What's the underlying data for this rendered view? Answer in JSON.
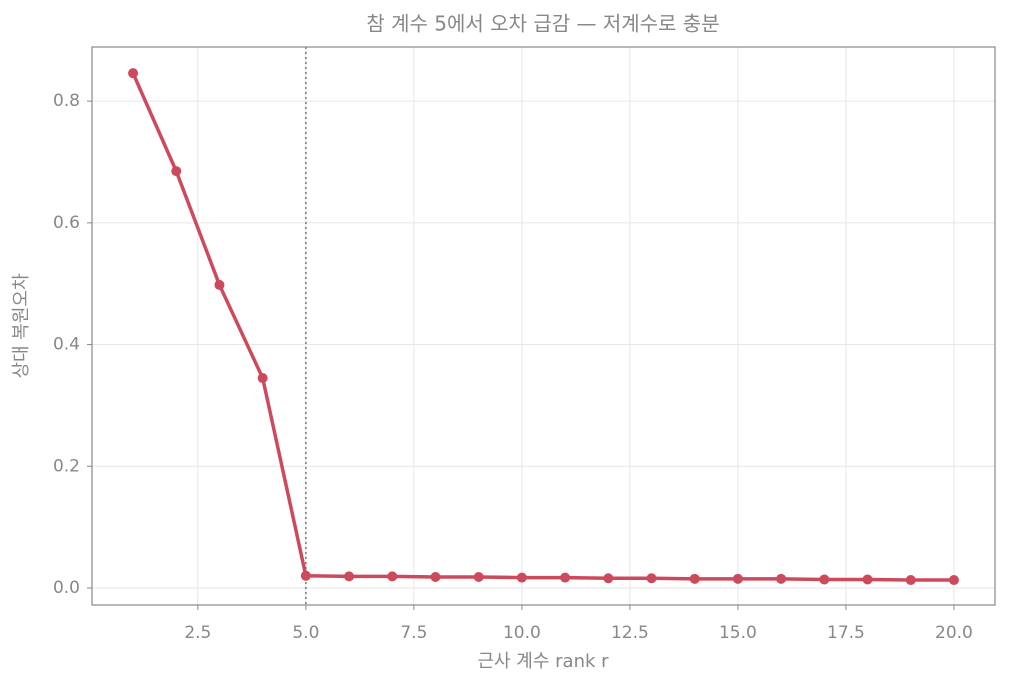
{
  "chart_data": {
    "type": "line",
    "title": "참 계수 5에서 오차 급감 — 저계수로 충분",
    "x_label": "근사 계수 rank r",
    "y_label": "상대 복원오차",
    "x": [
      1,
      2,
      3,
      4,
      5,
      6,
      7,
      8,
      9,
      10,
      11,
      12,
      13,
      14,
      15,
      16,
      17,
      18,
      19,
      20
    ],
    "series": [
      {
        "name": "상대 복원오차",
        "color": "#cd4a5c",
        "values": [
          0.846,
          0.685,
          0.498,
          0.345,
          0.02,
          0.019,
          0.019,
          0.018,
          0.018,
          0.017,
          0.017,
          0.016,
          0.016,
          0.015,
          0.015,
          0.015,
          0.014,
          0.014,
          0.013,
          0.013
        ]
      }
    ],
    "vline": 5,
    "xlim": [
      0.05,
      20.95
    ],
    "ylim": [
      -0.028,
      0.889
    ],
    "xticks": [
      2.5,
      {
        "value": 5,
        "label": "5.0"
      },
      7.5,
      {
        "value": 10,
        "label": "10.0"
      },
      12.5,
      {
        "value": 15,
        "label": "15.0"
      },
      17.5,
      {
        "value": 20,
        "label": "20.0"
      }
    ],
    "yticks": [
      {
        "value": 0,
        "label": "0.0"
      },
      0.2,
      0.4,
      0.6,
      0.8
    ],
    "grid": true
  }
}
